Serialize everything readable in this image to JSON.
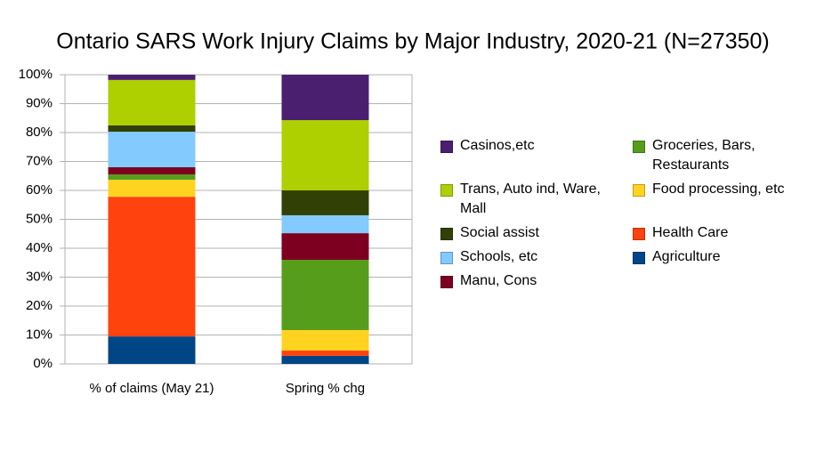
{
  "chart_data": {
    "type": "stacked_bar",
    "title": "Ontario SARS Work Injury Claims by Major Industry, 2020-21 (N=27350)",
    "categories": [
      "% of claims (May 21)",
      "Spring % chg"
    ],
    "series": [
      {
        "name": "Agriculture",
        "color": "#004586",
        "values": [
          9.5,
          2.8
        ]
      },
      {
        "name": "Health Care",
        "color": "#ff420e",
        "values": [
          48.3,
          1.8
        ]
      },
      {
        "name": "Food processing, etc",
        "color": "#ffd320",
        "values": [
          5.9,
          7.1
        ]
      },
      {
        "name": "Groceries, Bars, Restaurants",
        "color": "#579d1c",
        "values": [
          1.8,
          24.3
        ]
      },
      {
        "name": "Manu, Cons",
        "color": "#7e0021",
        "values": [
          2.5,
          9.2
        ]
      },
      {
        "name": "Schools, etc",
        "color": "#83caff",
        "values": [
          12.3,
          6.2
        ]
      },
      {
        "name": "Social assist",
        "color": "#314004",
        "values": [
          2.2,
          8.6
        ]
      },
      {
        "name": "Trans, Auto ind, Ware, Mall",
        "color": "#aecf00",
        "values": [
          15.7,
          24.3
        ]
      },
      {
        "name": "Casinos,etc",
        "color": "#4b1f6f",
        "values": [
          1.8,
          15.7
        ]
      }
    ],
    "ylim": [
      0,
      100
    ],
    "yticks": [
      {
        "value": 0,
        "label": "0%"
      },
      {
        "value": 10,
        "label": "10%"
      },
      {
        "value": 20,
        "label": "20%"
      },
      {
        "value": 30,
        "label": "30%"
      },
      {
        "value": 40,
        "label": "40%"
      },
      {
        "value": 50,
        "label": "50%"
      },
      {
        "value": 60,
        "label": "60%"
      },
      {
        "value": 70,
        "label": "70%"
      },
      {
        "value": 80,
        "label": "80%"
      },
      {
        "value": 90,
        "label": "90%"
      },
      {
        "value": 100,
        "label": "100%"
      }
    ],
    "grid": true
  }
}
